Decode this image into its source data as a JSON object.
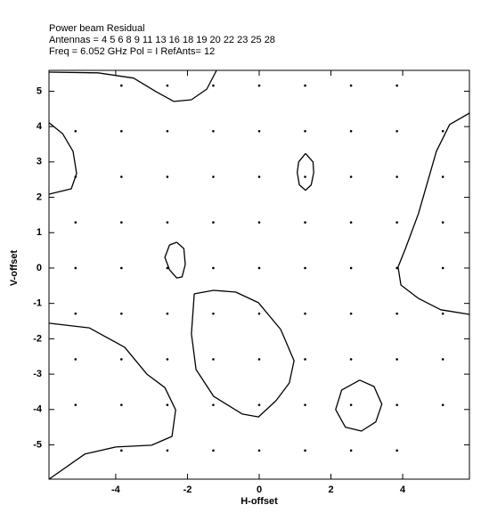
{
  "chart_data": {
    "type": "contour",
    "title": [
      "Power beam Residual",
      "Antennas = 4 5 6 8 9 11 13 16 18 19 20 22 23 25 28",
      "Freq = 6.052 GHz Pol = I  RefAnts= 12"
    ],
    "x_label": "H-offset",
    "y_label": "V-offset",
    "xlim": [
      -5.86,
      5.86
    ],
    "ylim": [
      -5.97,
      5.59
    ],
    "xticks": [
      -4,
      -2,
      0,
      2,
      4
    ],
    "yticks": [
      -5,
      -4,
      -3,
      -2,
      -1,
      0,
      1,
      2,
      3,
      4,
      5
    ],
    "color": "#000000",
    "points": {
      "x": [
        -3.84,
        -2.56,
        -1.28,
        0,
        1.28,
        2.56,
        3.84,
        -5.12,
        -3.84,
        -2.56,
        -1.28,
        0,
        1.28,
        2.56,
        3.84,
        5.12,
        -5.12,
        -3.84,
        -2.56,
        -1.28,
        0,
        1.28,
        2.56,
        3.84,
        5.12,
        -5.12,
        -3.84,
        -2.56,
        -1.28,
        0,
        1.28,
        2.56,
        3.84,
        5.12,
        -5.12,
        -3.84,
        -2.56,
        -1.28,
        0,
        1.28,
        2.56,
        3.84,
        5.12,
        -5.12,
        -3.84,
        -2.56,
        -1.28,
        0,
        1.28,
        2.56,
        3.84,
        5.12,
        -5.12,
        -3.84,
        -2.56,
        -1.28,
        0,
        1.28,
        2.56,
        3.84,
        5.12,
        -5.12,
        -3.84,
        -2.56,
        -1.28,
        0,
        1.28,
        2.56,
        3.84,
        5.12,
        -3.84,
        -2.56,
        -1.28,
        0,
        1.28,
        2.56,
        3.84
      ],
      "y": [
        5.16,
        5.16,
        5.16,
        5.16,
        5.16,
        5.16,
        5.16,
        3.87,
        3.87,
        3.87,
        3.87,
        3.87,
        3.87,
        3.87,
        3.87,
        3.87,
        2.58,
        2.58,
        2.58,
        2.58,
        2.58,
        2.58,
        2.58,
        2.58,
        2.58,
        1.29,
        1.29,
        1.29,
        1.29,
        1.29,
        1.29,
        1.29,
        1.29,
        1.29,
        0,
        0,
        0,
        0,
        0,
        0,
        0,
        0,
        0,
        -1.29,
        -1.29,
        -1.29,
        -1.29,
        -1.29,
        -1.29,
        -1.29,
        -1.29,
        -1.29,
        -2.58,
        -2.58,
        -2.58,
        -2.58,
        -2.58,
        -2.58,
        -2.58,
        -2.58,
        -2.58,
        -3.87,
        -3.87,
        -3.87,
        -3.87,
        -3.87,
        -3.87,
        -3.87,
        -3.87,
        -3.87,
        -5.16,
        -5.16,
        -5.16,
        -5.16,
        -5.16,
        -5.16,
        -5.16
      ]
    },
    "contours": [
      {
        "x": [
          -5.86,
          -4.49,
          -3.5,
          -2.88,
          -2.38,
          -1.89,
          -1.46,
          -1.19
        ],
        "y": [
          5.54,
          5.52,
          5.37,
          4.99,
          4.71,
          4.76,
          5.06,
          5.59
        ]
      },
      {
        "x": [
          -5.86,
          -5.48,
          -5.19,
          -5.09,
          -5.24,
          -5.86
        ],
        "y": [
          4.11,
          3.8,
          3.3,
          2.67,
          2.24,
          2.09
        ]
      },
      {
        "x": [
          1.29,
          1.5,
          1.52,
          1.45,
          1.29,
          1.12,
          1.06,
          1.1,
          1.29
        ],
        "y": [
          3.24,
          3.0,
          2.7,
          2.35,
          2.2,
          2.35,
          2.7,
          3.0,
          3.24
        ]
      },
      {
        "x": [
          -2.3,
          -2.1,
          -2.06,
          -2.15,
          -2.3,
          -2.5,
          -2.63,
          -2.5,
          -2.3
        ],
        "y": [
          0.73,
          0.55,
          0.1,
          -0.25,
          -0.28,
          -0.05,
          0.3,
          0.65,
          0.73
        ]
      },
      {
        "x": [
          -1.81,
          -1.27,
          -0.65,
          -0.02,
          0.6,
          0.97,
          0.84,
          0.47,
          -0.02,
          -0.47,
          -1.27,
          -1.76,
          -1.89,
          -1.81
        ],
        "y": [
          -0.73,
          -0.63,
          -0.68,
          -0.98,
          -1.74,
          -2.62,
          -3.25,
          -3.75,
          -4.21,
          -4.13,
          -3.63,
          -2.87,
          -1.86,
          -0.73
        ]
      },
      {
        "x": [
          2.8,
          3.2,
          3.42,
          3.25,
          2.85,
          2.4,
          2.13,
          2.3,
          2.8
        ],
        "y": [
          -3.17,
          -3.35,
          -3.85,
          -4.35,
          -4.61,
          -4.5,
          -4.0,
          -3.45,
          -3.17
        ]
      },
      {
        "x": [
          -5.86,
          -4.74,
          -3.75,
          -3.13,
          -2.63,
          -2.33,
          -2.43,
          -3.0,
          -4.0,
          -4.86,
          -5.86
        ],
        "y": [
          -1.56,
          -1.69,
          -2.24,
          -3.0,
          -3.38,
          -4.01,
          -4.76,
          -5.01,
          -5.06,
          -5.26,
          -5.97
        ]
      },
      {
        "x": [
          5.86,
          5.31,
          4.94,
          4.44,
          4.07,
          3.87,
          3.95,
          4.44,
          5.06,
          5.86
        ],
        "y": [
          4.38,
          4.06,
          3.3,
          1.54,
          0.53,
          0.03,
          -0.48,
          -0.86,
          -1.18,
          -1.31
        ]
      }
    ]
  }
}
